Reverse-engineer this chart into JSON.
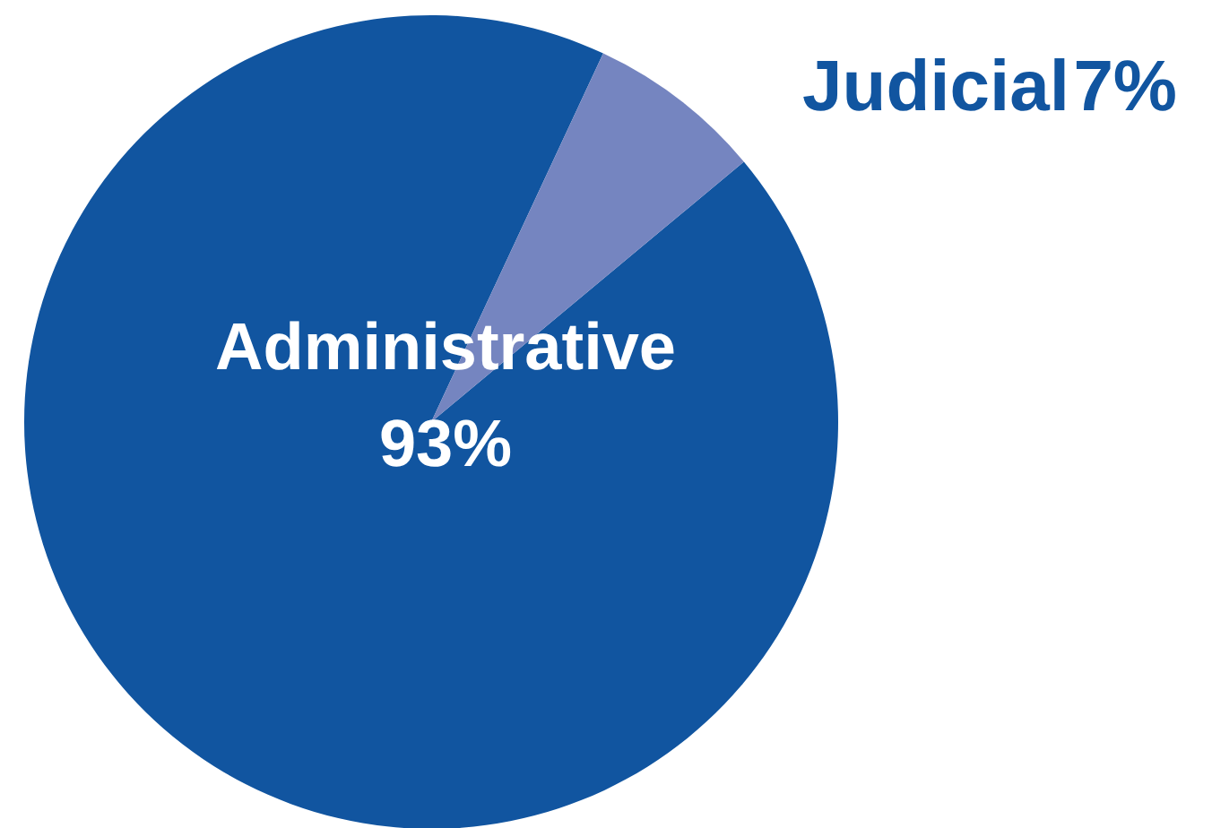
{
  "chart_data": {
    "type": "pie",
    "categories": [
      "Administrative",
      "Judicial"
    ],
    "values": [
      93,
      7
    ],
    "colors": [
      "#1155a0",
      "#7585c0"
    ],
    "value_labels": [
      "93%",
      "7%"
    ]
  }
}
